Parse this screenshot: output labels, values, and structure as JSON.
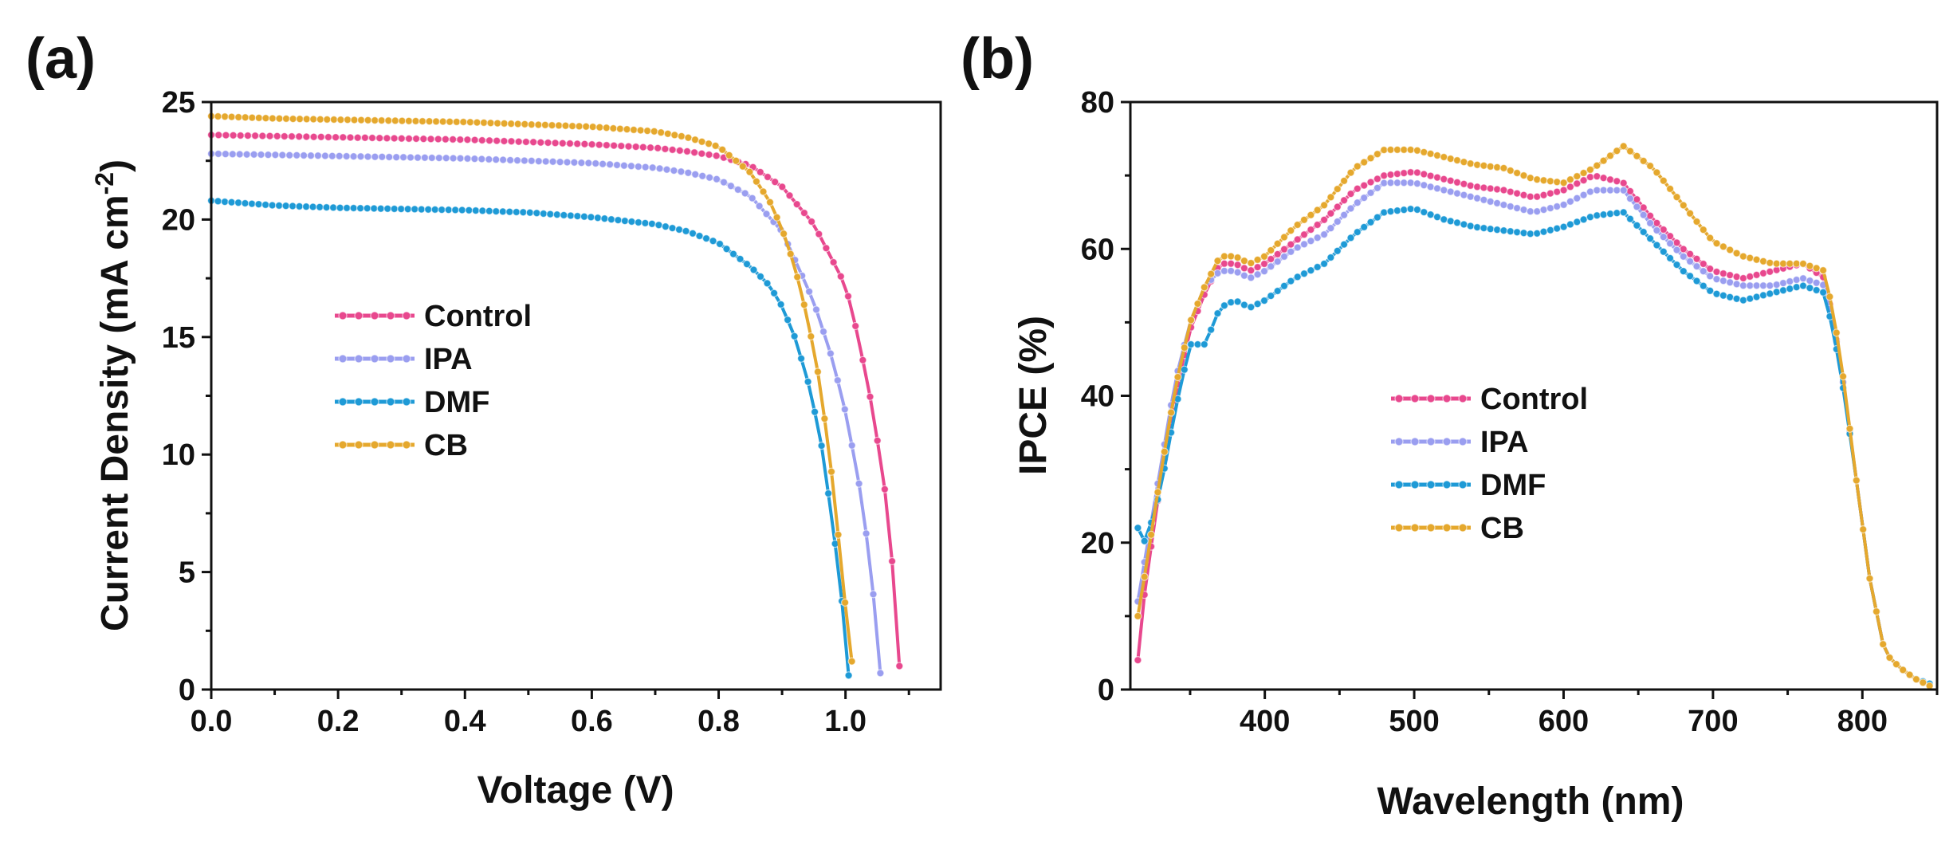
{
  "chart_data": [
    {
      "type": "line",
      "panel_label": "(a)",
      "title": "",
      "xlabel": "Voltage (V)",
      "ylabel_main": "Current Density (mA cm",
      "ylabel_sup": "-2",
      "ylabel_close": ")",
      "xlim": [
        0.0,
        1.15
      ],
      "ylim": [
        0,
        25
      ],
      "x_ticks": [
        0.0,
        0.2,
        0.4,
        0.6,
        0.8,
        1.0
      ],
      "x_tick_labels": [
        "0.0",
        "0.2",
        "0.4",
        "0.6",
        "0.8",
        "1.0"
      ],
      "y_ticks": [
        0,
        5,
        10,
        15,
        20,
        25
      ],
      "y_tick_labels": [
        "0",
        "5",
        "10",
        "15",
        "20",
        "25"
      ],
      "legend_position": "center-left",
      "series": [
        {
          "name": "Control",
          "color": "#e8488e",
          "x": [
            0,
            0.1,
            0.2,
            0.3,
            0.4,
            0.5,
            0.6,
            0.7,
            0.75,
            0.8,
            0.85,
            0.9,
            0.95,
            1.0,
            1.02,
            1.04,
            1.06,
            1.07,
            1.08,
            1.085
          ],
          "y": [
            23.6,
            23.55,
            23.5,
            23.45,
            23.4,
            23.3,
            23.2,
            23.05,
            22.9,
            22.7,
            22.3,
            21.4,
            19.8,
            17.2,
            15.0,
            12.3,
            9.0,
            6.5,
            3.5,
            1.0
          ]
        },
        {
          "name": "IPA",
          "color": "#9a9ef0",
          "x": [
            0,
            0.1,
            0.2,
            0.3,
            0.4,
            0.5,
            0.6,
            0.7,
            0.75,
            0.8,
            0.85,
            0.9,
            0.95,
            0.98,
            1.0,
            1.02,
            1.03,
            1.04,
            1.05,
            1.055
          ],
          "y": [
            22.8,
            22.75,
            22.7,
            22.65,
            22.6,
            22.5,
            22.4,
            22.2,
            22.0,
            21.7,
            21.0,
            19.5,
            16.5,
            14.0,
            11.8,
            9.0,
            7.2,
            5.0,
            2.5,
            0.7
          ]
        },
        {
          "name": "DMF",
          "color": "#1e9ad6",
          "x": [
            0,
            0.1,
            0.2,
            0.3,
            0.4,
            0.5,
            0.6,
            0.7,
            0.75,
            0.8,
            0.85,
            0.88,
            0.9,
            0.92,
            0.94,
            0.96,
            0.98,
            0.99,
            1.0,
            1.005
          ],
          "y": [
            20.8,
            20.6,
            20.5,
            20.45,
            20.4,
            20.3,
            20.1,
            19.8,
            19.5,
            19.0,
            18.0,
            17.2,
            16.3,
            15.0,
            13.2,
            10.8,
            7.0,
            4.8,
            2.4,
            0.6
          ]
        },
        {
          "name": "CB",
          "color": "#e5a82d",
          "x": [
            0,
            0.1,
            0.2,
            0.3,
            0.4,
            0.5,
            0.6,
            0.7,
            0.75,
            0.8,
            0.85,
            0.88,
            0.9,
            0.92,
            0.94,
            0.96,
            0.98,
            0.99,
            1.0,
            1.01
          ],
          "y": [
            24.4,
            24.3,
            24.25,
            24.2,
            24.15,
            24.05,
            23.95,
            23.75,
            23.5,
            23.1,
            22.0,
            20.8,
            19.6,
            18.0,
            15.8,
            13.0,
            8.8,
            6.2,
            3.5,
            1.2
          ]
        }
      ],
      "legend": [
        "Control",
        "IPA",
        "DMF",
        "CB"
      ]
    },
    {
      "type": "line",
      "panel_label": "(b)",
      "title": "",
      "xlabel": "Wavelength (nm)",
      "ylabel": "IPCE (%)",
      "xlim": [
        310,
        850
      ],
      "ylim": [
        0,
        80
      ],
      "x_ticks": [
        400,
        500,
        600,
        700,
        800
      ],
      "x_tick_labels": [
        "400",
        "500",
        "600",
        "700",
        "800"
      ],
      "y_ticks": [
        0,
        20,
        40,
        60,
        80
      ],
      "y_tick_labels": [
        "0",
        "20",
        "40",
        "60",
        "80"
      ],
      "legend_position": "center",
      "series": [
        {
          "name": "Control",
          "color": "#e8488e",
          "x": [
            315,
            320,
            330,
            340,
            350,
            360,
            370,
            380,
            390,
            400,
            420,
            440,
            460,
            480,
            500,
            520,
            540,
            560,
            580,
            600,
            620,
            640,
            660,
            680,
            700,
            720,
            740,
            760,
            775,
            785,
            795,
            805,
            815,
            825,
            835,
            845
          ],
          "y": [
            4,
            14,
            28,
            40,
            49,
            54,
            58,
            58,
            57,
            58,
            61,
            64,
            68,
            70,
            70.5,
            69.5,
            68.5,
            68,
            67,
            68,
            70,
            69,
            64,
            60,
            57,
            56,
            57,
            58,
            56,
            45,
            30,
            15,
            5,
            3,
            1.5,
            0.5
          ]
        },
        {
          "name": "IPA",
          "color": "#9a9ef0",
          "x": [
            315,
            320,
            330,
            340,
            350,
            360,
            370,
            380,
            390,
            400,
            420,
            440,
            460,
            480,
            500,
            520,
            540,
            560,
            580,
            600,
            620,
            640,
            660,
            680,
            700,
            720,
            740,
            760,
            775,
            785,
            795,
            805,
            815,
            825,
            835,
            845
          ],
          "y": [
            12,
            18,
            30,
            42,
            50,
            55,
            57,
            57,
            56,
            57,
            60,
            62,
            66,
            69,
            69,
            68,
            67,
            66,
            65,
            66,
            68,
            68,
            63,
            59,
            56,
            55,
            55,
            56,
            55,
            45,
            30,
            15,
            5,
            3,
            1.5,
            0.5
          ]
        },
        {
          "name": "DMF",
          "color": "#1e9ad6",
          "x": [
            315,
            320,
            330,
            340,
            350,
            360,
            370,
            380,
            390,
            400,
            420,
            440,
            460,
            480,
            500,
            520,
            540,
            560,
            580,
            600,
            620,
            640,
            660,
            680,
            700,
            720,
            740,
            760,
            775,
            785,
            795,
            805,
            815,
            825,
            835,
            845
          ],
          "y": [
            22,
            20,
            27,
            38,
            47,
            47,
            52,
            53,
            52,
            53,
            56,
            58,
            62,
            65,
            65.5,
            64,
            63,
            62.5,
            62,
            63,
            64.5,
            65,
            61,
            57,
            54,
            53,
            54,
            55,
            54,
            44,
            30,
            15,
            5,
            3,
            1.5,
            0.8
          ]
        },
        {
          "name": "CB",
          "color": "#e5a82d",
          "x": [
            315,
            320,
            330,
            340,
            350,
            360,
            370,
            380,
            390,
            400,
            420,
            440,
            460,
            480,
            500,
            520,
            540,
            560,
            580,
            600,
            620,
            640,
            660,
            680,
            700,
            720,
            740,
            760,
            775,
            785,
            795,
            805,
            815,
            825,
            835,
            845
          ],
          "y": [
            10,
            16,
            29,
            41,
            50,
            55,
            59,
            59,
            58,
            59,
            63,
            66,
            71,
            73.5,
            73.5,
            72.5,
            71.5,
            71,
            69.5,
            69,
            71,
            74,
            71,
            66,
            61,
            59,
            58,
            58,
            57,
            46,
            30,
            15,
            5,
            3,
            1.5,
            0.5
          ]
        }
      ],
      "legend": [
        "Control",
        "IPA",
        "DMF",
        "CB"
      ]
    }
  ]
}
